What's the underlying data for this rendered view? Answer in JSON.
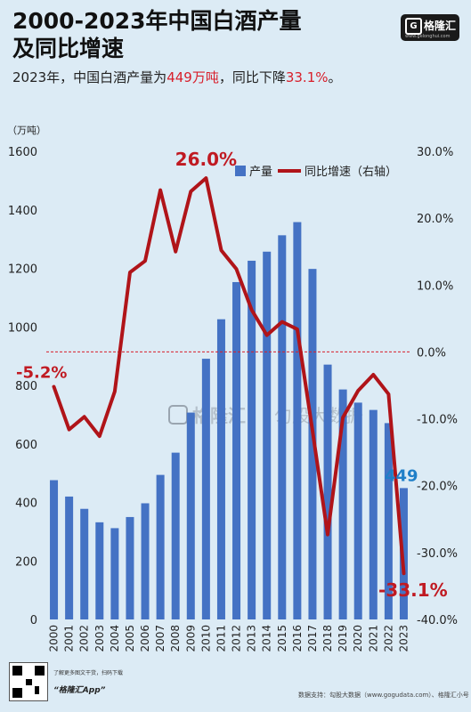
{
  "title_line1": "2000-2023年中国白酒产量",
  "title_line2": "及同比增速",
  "subtitle": {
    "prefix": "2023年，中国白酒产量为",
    "highlight1": "449万吨",
    "middle": "，同比下降",
    "highlight2": "33.1%",
    "suffix": "。"
  },
  "logo": {
    "text": "格隆汇",
    "url": "www.gelonghui.com"
  },
  "watermark": {
    "left": "格隆汇",
    "right": "匀股大数据"
  },
  "footer": {
    "note": "了解更多图文干货，扫码下载",
    "app": "“格隆汇App”",
    "source": "数据支持：勾股大数据（www.gogudata.com）、格隆汇小号"
  },
  "colors": {
    "bar": "#4472c4",
    "line": "#b01419",
    "label_red": "#c01a22",
    "label_blue": "#1f7fc8"
  },
  "chart_data": {
    "type": "bar",
    "categories": [
      "2000",
      "2001",
      "2002",
      "2003",
      "2004",
      "2005",
      "2006",
      "2007",
      "2008",
      "2009",
      "2010",
      "2011",
      "2012",
      "2013",
      "2014",
      "2015",
      "2016",
      "2017",
      "2018",
      "2019",
      "2020",
      "2021",
      "2022",
      "2023"
    ],
    "series": [
      {
        "name": "产量",
        "type": "bar",
        "axis": "left",
        "values": [
          476,
          420,
          378,
          332,
          312,
          350,
          397,
          494,
          570,
          707,
          891,
          1026,
          1153,
          1226,
          1257,
          1313,
          1358,
          1198,
          871,
          786,
          741,
          716,
          671,
          449
        ]
      },
      {
        "name": "同比增速（右轴）",
        "type": "line",
        "axis": "right",
        "values": [
          -5.2,
          -11.6,
          -9.7,
          -12.6,
          -5.9,
          11.9,
          13.6,
          24.2,
          15.0,
          24.0,
          26.0,
          15.2,
          12.4,
          6.3,
          2.5,
          4.5,
          3.4,
          -11.8,
          -27.3,
          -9.8,
          -5.8,
          -3.4,
          -6.3,
          -33.1
        ]
      }
    ],
    "ylabel_left": "（万吨）",
    "ylim_left": [
      0,
      1600
    ],
    "yticks_left": [
      "0",
      "200",
      "400",
      "600",
      "800",
      "1000",
      "1200",
      "1400",
      "1600"
    ],
    "ylim_right": [
      -40,
      30
    ],
    "yticks_right": [
      "30.0%",
      "20.0%",
      "10.0%",
      "0.0%",
      "-10.0%",
      "-20.0%",
      "-30.0%",
      "-40.0%"
    ],
    "annotations": [
      {
        "text": "-5.2%",
        "index": 0
      },
      {
        "text": "26.0%",
        "index": 10
      },
      {
        "text": "449",
        "index": 23
      },
      {
        "text": "-33.1%",
        "index": 23
      }
    ],
    "legend": [
      "产量",
      "同比增速（右轴）"
    ],
    "legend_position": "top-right"
  }
}
